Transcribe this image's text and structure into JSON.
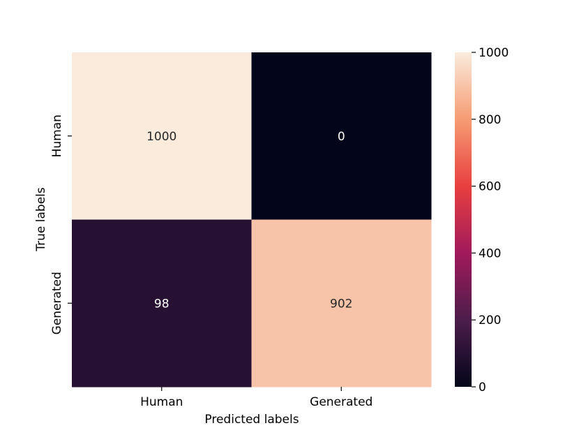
{
  "chart_data": {
    "type": "heatmap",
    "title": "",
    "xlabel": "Predicted labels",
    "ylabel": "True labels",
    "x_categories": [
      "Human",
      "Generated"
    ],
    "y_categories": [
      "Human",
      "Generated"
    ],
    "values": [
      [
        1000,
        0
      ],
      [
        98,
        902
      ]
    ],
    "cell_labels": [
      [
        "1000",
        "0"
      ],
      [
        "98",
        "902"
      ]
    ],
    "colorbar": {
      "min": 0,
      "max": 1000,
      "ticks": [
        0,
        200,
        400,
        600,
        800,
        1000
      ],
      "tick_labels": [
        "0",
        "200",
        "400",
        "600",
        "800",
        "1000"
      ],
      "colormap": "rocket",
      "colormap_stops": [
        "#03051a",
        "#4c1d4b",
        "#a11a5b",
        "#e83f3f",
        "#f69c73",
        "#faebdd"
      ]
    },
    "grid": false
  }
}
